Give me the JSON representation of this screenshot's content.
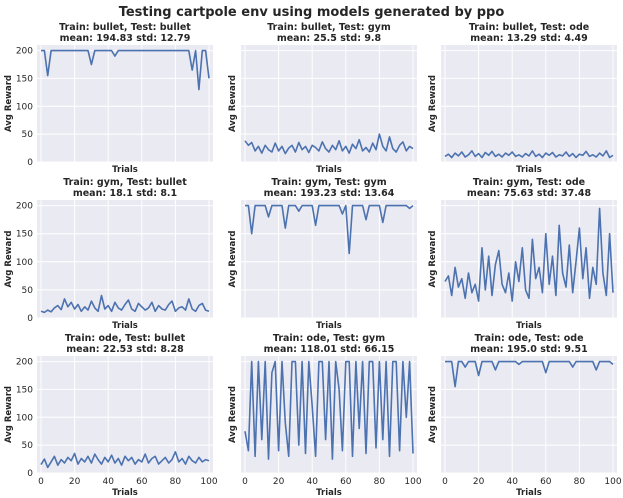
{
  "figure_title": "Testing cartpole env using models generated by ppo",
  "colors": {
    "background": "#eaeaf2",
    "line": "#4c72b0",
    "grid": "#ffffff",
    "text": "#262626"
  },
  "chart_data": [
    {
      "type": "line",
      "title": "Train: bullet, Test: bullet",
      "subtitle": "mean: 194.83 std: 12.79",
      "xlabel": "Trials",
      "ylabel": "Avg Reward",
      "xlim": [
        0,
        100
      ],
      "ylim": [
        0,
        210
      ],
      "xticks": [],
      "yticks": [
        0,
        50,
        100,
        150,
        200
      ],
      "x": [
        0,
        2,
        4,
        6,
        8,
        10,
        12,
        14,
        16,
        18,
        20,
        22,
        24,
        26,
        28,
        30,
        32,
        34,
        36,
        38,
        40,
        42,
        44,
        46,
        48,
        50,
        52,
        54,
        56,
        58,
        60,
        62,
        64,
        66,
        68,
        70,
        72,
        74,
        76,
        78,
        80,
        82,
        84,
        86,
        88,
        90,
        92,
        94,
        96,
        98,
        100
      ],
      "values": [
        200,
        200,
        155,
        200,
        200,
        200,
        200,
        200,
        200,
        200,
        200,
        200,
        200,
        200,
        200,
        175,
        200,
        200,
        200,
        200,
        200,
        200,
        190,
        200,
        200,
        200,
        200,
        200,
        200,
        200,
        200,
        200,
        200,
        200,
        200,
        200,
        200,
        200,
        200,
        200,
        200,
        200,
        200,
        200,
        200,
        165,
        200,
        130,
        200,
        200,
        150
      ]
    },
    {
      "type": "line",
      "title": "Train: bullet, Test: gym",
      "subtitle": "mean: 25.5 std: 9.8",
      "xlabel": "Trials",
      "ylabel": "Avg Reward",
      "xlim": [
        0,
        100
      ],
      "ylim": [
        0,
        210
      ],
      "xticks": [],
      "yticks": [],
      "x": [
        0,
        2,
        4,
        6,
        8,
        10,
        12,
        14,
        16,
        18,
        20,
        22,
        24,
        26,
        28,
        30,
        32,
        34,
        36,
        38,
        40,
        42,
        44,
        46,
        48,
        50,
        52,
        54,
        56,
        58,
        60,
        62,
        64,
        66,
        68,
        70,
        72,
        74,
        76,
        78,
        80,
        82,
        84,
        86,
        88,
        90,
        92,
        94,
        96,
        98,
        100
      ],
      "values": [
        38,
        30,
        35,
        20,
        28,
        16,
        30,
        22,
        18,
        34,
        20,
        28,
        15,
        25,
        30,
        18,
        35,
        22,
        28,
        17,
        30,
        26,
        20,
        36,
        24,
        18,
        30,
        22,
        38,
        20,
        28,
        16,
        32,
        24,
        40,
        20,
        26,
        18,
        34,
        22,
        50,
        28,
        20,
        45,
        24,
        18,
        30,
        36,
        20,
        28,
        24
      ]
    },
    {
      "type": "line",
      "title": "Train: bullet, Test: ode",
      "subtitle": "mean: 13.29 std: 4.49",
      "xlabel": "Trials",
      "ylabel": "Avg Reward",
      "xlim": [
        0,
        100
      ],
      "ylim": [
        0,
        210
      ],
      "xticks": [],
      "yticks": [],
      "x": [
        0,
        2,
        4,
        6,
        8,
        10,
        12,
        14,
        16,
        18,
        20,
        22,
        24,
        26,
        28,
        30,
        32,
        34,
        36,
        38,
        40,
        42,
        44,
        46,
        48,
        50,
        52,
        54,
        56,
        58,
        60,
        62,
        64,
        66,
        68,
        70,
        72,
        74,
        76,
        78,
        80,
        82,
        84,
        86,
        88,
        90,
        92,
        94,
        96,
        98,
        100
      ],
      "values": [
        10,
        14,
        8,
        16,
        11,
        18,
        9,
        13,
        20,
        10,
        15,
        8,
        17,
        12,
        19,
        10,
        14,
        9,
        16,
        12,
        18,
        10,
        13,
        9,
        15,
        11,
        20,
        10,
        14,
        8,
        16,
        12,
        17,
        9,
        13,
        11,
        18,
        10,
        15,
        8,
        14,
        12,
        19,
        10,
        13,
        9,
        16,
        11,
        20,
        8,
        12
      ]
    },
    {
      "type": "line",
      "title": "Train: gym, Test: bullet",
      "subtitle": "mean: 18.1 std: 8.1",
      "xlabel": "Trials",
      "ylabel": "Avg Reward",
      "xlim": [
        0,
        100
      ],
      "ylim": [
        0,
        210
      ],
      "xticks": [],
      "yticks": [
        0,
        50,
        100,
        150,
        200
      ],
      "x": [
        0,
        2,
        4,
        6,
        8,
        10,
        12,
        14,
        16,
        18,
        20,
        22,
        24,
        26,
        28,
        30,
        32,
        34,
        36,
        38,
        40,
        42,
        44,
        46,
        48,
        50,
        52,
        54,
        56,
        58,
        60,
        62,
        64,
        66,
        68,
        70,
        72,
        74,
        76,
        78,
        80,
        82,
        84,
        86,
        88,
        90,
        92,
        94,
        96,
        98,
        100
      ],
      "values": [
        12,
        10,
        14,
        11,
        18,
        22,
        15,
        34,
        20,
        28,
        16,
        24,
        12,
        20,
        14,
        30,
        18,
        12,
        40,
        16,
        22,
        12,
        28,
        18,
        14,
        24,
        32,
        16,
        12,
        26,
        20,
        14,
        18,
        28,
        12,
        22,
        16,
        14,
        24,
        30,
        12,
        18,
        20,
        14,
        34,
        16,
        12,
        22,
        26,
        14,
        12
      ]
    },
    {
      "type": "line",
      "title": "Train: gym, Test: gym",
      "subtitle": "mean: 193.23 std: 13.64",
      "xlabel": "Trials",
      "ylabel": "Avg Reward",
      "xlim": [
        0,
        100
      ],
      "ylim": [
        0,
        210
      ],
      "xticks": [],
      "yticks": [],
      "x": [
        0,
        2,
        4,
        6,
        8,
        10,
        12,
        14,
        16,
        18,
        20,
        22,
        24,
        26,
        28,
        30,
        32,
        34,
        36,
        38,
        40,
        42,
        44,
        46,
        48,
        50,
        52,
        54,
        56,
        58,
        60,
        62,
        64,
        66,
        68,
        70,
        72,
        74,
        76,
        78,
        80,
        82,
        84,
        86,
        88,
        90,
        92,
        94,
        96,
        98,
        100
      ],
      "values": [
        200,
        200,
        150,
        200,
        200,
        200,
        200,
        180,
        200,
        200,
        200,
        200,
        160,
        200,
        200,
        200,
        190,
        200,
        200,
        200,
        200,
        165,
        200,
        200,
        200,
        200,
        200,
        200,
        200,
        185,
        200,
        115,
        200,
        200,
        200,
        200,
        175,
        200,
        200,
        200,
        200,
        170,
        200,
        200,
        200,
        200,
        200,
        200,
        200,
        195,
        200
      ]
    },
    {
      "type": "line",
      "title": "Train: gym, Test: ode",
      "subtitle": "mean: 75.63 std: 37.48",
      "xlabel": "Trials",
      "ylabel": "Avg Reward",
      "xlim": [
        0,
        100
      ],
      "ylim": [
        0,
        210
      ],
      "xticks": [],
      "yticks": [],
      "x": [
        0,
        2,
        4,
        6,
        8,
        10,
        12,
        14,
        16,
        18,
        20,
        22,
        24,
        26,
        28,
        30,
        32,
        34,
        36,
        38,
        40,
        42,
        44,
        46,
        48,
        50,
        52,
        54,
        56,
        58,
        60,
        62,
        64,
        66,
        68,
        70,
        72,
        74,
        76,
        78,
        80,
        82,
        84,
        86,
        88,
        90,
        92,
        94,
        96,
        98,
        100
      ],
      "values": [
        65,
        75,
        40,
        90,
        55,
        70,
        35,
        80,
        45,
        60,
        30,
        125,
        50,
        110,
        40,
        95,
        120,
        60,
        45,
        80,
        30,
        100,
        65,
        125,
        50,
        35,
        140,
        70,
        90,
        45,
        150,
        60,
        110,
        40,
        165,
        80,
        55,
        130,
        45,
        100,
        160,
        70,
        125,
        35,
        90,
        60,
        195,
        80,
        40,
        150,
        45
      ]
    },
    {
      "type": "line",
      "title": "Train: ode, Test: bullet",
      "subtitle": "mean: 22.53 std: 8.28",
      "xlabel": "Trials",
      "ylabel": "Avg Reward",
      "xlim": [
        0,
        100
      ],
      "ylim": [
        0,
        210
      ],
      "xticks": [
        0,
        20,
        40,
        60,
        80,
        100
      ],
      "yticks": [
        0,
        50,
        100,
        150,
        200
      ],
      "x": [
        0,
        2,
        4,
        6,
        8,
        10,
        12,
        14,
        16,
        18,
        20,
        22,
        24,
        26,
        28,
        30,
        32,
        34,
        36,
        38,
        40,
        42,
        44,
        46,
        48,
        50,
        52,
        54,
        56,
        58,
        60,
        62,
        64,
        66,
        68,
        70,
        72,
        74,
        76,
        78,
        80,
        82,
        84,
        86,
        88,
        90,
        92,
        94,
        96,
        98,
        100
      ],
      "values": [
        15,
        25,
        10,
        20,
        30,
        14,
        24,
        18,
        28,
        22,
        35,
        16,
        26,
        20,
        30,
        18,
        34,
        24,
        16,
        28,
        20,
        32,
        18,
        26,
        14,
        30,
        22,
        28,
        16,
        24,
        20,
        34,
        18,
        26,
        30,
        16,
        22,
        28,
        18,
        24,
        38,
        20,
        26,
        16,
        30,
        22,
        18,
        28,
        20,
        24,
        22
      ]
    },
    {
      "type": "line",
      "title": "Train: ode, Test: gym",
      "subtitle": "mean: 118.01 std: 66.15",
      "xlabel": "Trials",
      "ylabel": "Avg Reward",
      "xlim": [
        0,
        100
      ],
      "ylim": [
        0,
        210
      ],
      "xticks": [
        0,
        20,
        40,
        60,
        80,
        100
      ],
      "yticks": [],
      "x": [
        0,
        2,
        4,
        6,
        8,
        10,
        12,
        14,
        16,
        18,
        20,
        22,
        24,
        26,
        28,
        30,
        32,
        34,
        36,
        38,
        40,
        42,
        44,
        46,
        48,
        50,
        52,
        54,
        56,
        58,
        60,
        62,
        64,
        66,
        68,
        70,
        72,
        74,
        76,
        78,
        80,
        82,
        84,
        86,
        88,
        90,
        92,
        94,
        96,
        98,
        100
      ],
      "values": [
        75,
        40,
        200,
        30,
        200,
        60,
        200,
        25,
        180,
        200,
        40,
        200,
        90,
        30,
        200,
        200,
        50,
        200,
        35,
        200,
        120,
        30,
        200,
        200,
        60,
        200,
        25,
        200,
        150,
        40,
        200,
        200,
        30,
        200,
        80,
        200,
        35,
        200,
        200,
        45,
        200,
        60,
        200,
        30,
        200,
        200,
        40,
        200,
        100,
        200,
        35
      ]
    },
    {
      "type": "line",
      "title": "Train: ode, Test: ode",
      "subtitle": "mean: 195.0 std: 9.51",
      "xlabel": "Trials",
      "ylabel": "Avg Reward",
      "xlim": [
        0,
        100
      ],
      "ylim": [
        0,
        210
      ],
      "xticks": [
        0,
        20,
        40,
        60,
        80,
        100
      ],
      "yticks": [],
      "x": [
        0,
        2,
        4,
        6,
        8,
        10,
        12,
        14,
        16,
        18,
        20,
        22,
        24,
        26,
        28,
        30,
        32,
        34,
        36,
        38,
        40,
        42,
        44,
        46,
        48,
        50,
        52,
        54,
        56,
        58,
        60,
        62,
        64,
        66,
        68,
        70,
        72,
        74,
        76,
        78,
        80,
        82,
        84,
        86,
        88,
        90,
        92,
        94,
        96,
        98,
        100
      ],
      "values": [
        200,
        200,
        200,
        155,
        200,
        200,
        190,
        200,
        200,
        200,
        175,
        200,
        200,
        200,
        200,
        185,
        200,
        200,
        200,
        200,
        200,
        200,
        195,
        200,
        200,
        200,
        200,
        200,
        200,
        200,
        180,
        200,
        200,
        200,
        200,
        200,
        200,
        200,
        190,
        200,
        200,
        200,
        200,
        200,
        200,
        185,
        200,
        200,
        200,
        200,
        195
      ]
    }
  ]
}
